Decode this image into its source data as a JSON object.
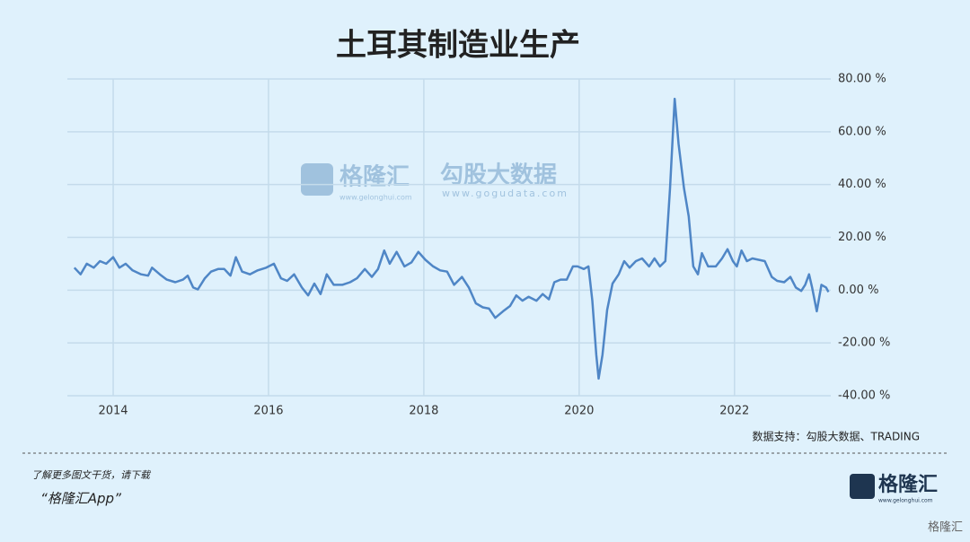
{
  "chart_data": {
    "type": "line",
    "title": "土耳其制造业生产",
    "source": "数据支持：勾股大数据、TRADING",
    "watermark": {
      "brand": "格隆汇",
      "brand_url": "www.gelonghui.com",
      "data_brand": "勾股大数据",
      "data_url": "www.gogudata.com"
    },
    "xlim": [
      2013.41,
      2023.24
    ],
    "xticks": [
      2014,
      2016,
      2018,
      2020,
      2022
    ],
    "ylim": [
      -40,
      80
    ],
    "yticks": [
      {
        "value": -40,
        "label": "-40.00 %"
      },
      {
        "value": -20,
        "label": "-20.00 %"
      },
      {
        "value": 0,
        "label": "0.00 %"
      },
      {
        "value": 20,
        "label": "20.00 %"
      },
      {
        "value": 40,
        "label": "40.00 %"
      },
      {
        "value": 60,
        "label": "60.00 %"
      },
      {
        "value": 80,
        "label": "80.00 %"
      }
    ],
    "grid": true,
    "series": [
      {
        "color": "#4f86c6",
        "x": [
          2013.5,
          2013.58,
          2013.66,
          2013.75,
          2013.83,
          2013.91,
          2014.0,
          2014.08,
          2014.16,
          2014.25,
          2014.36,
          2014.45,
          2014.5,
          2014.6,
          2014.69,
          2014.8,
          2014.9,
          2014.96,
          2015.03,
          2015.09,
          2015.18,
          2015.26,
          2015.35,
          2015.43,
          2015.51,
          2015.58,
          2015.66,
          2015.76,
          2015.86,
          2015.97,
          2016.07,
          2016.16,
          2016.24,
          2016.33,
          2016.43,
          2016.51,
          2016.59,
          2016.67,
          2016.75,
          2016.84,
          2016.95,
          2017.05,
          2017.14,
          2017.24,
          2017.33,
          2017.41,
          2017.49,
          2017.56,
          2017.65,
          2017.75,
          2017.84,
          2017.93,
          2018.02,
          2018.12,
          2018.21,
          2018.3,
          2018.39,
          2018.49,
          2018.58,
          2018.67,
          2018.76,
          2018.84,
          2018.92,
          2019.02,
          2019.11,
          2019.19,
          2019.27,
          2019.35,
          2019.45,
          2019.53,
          2019.61,
          2019.68,
          2019.76,
          2019.84,
          2019.92,
          2019.98,
          2020.06,
          2020.12,
          2020.17,
          2020.22,
          2020.25,
          2020.3,
          2020.36,
          2020.43,
          2020.51,
          2020.58,
          2020.65,
          2020.73,
          2020.81,
          2020.9,
          2020.97,
          2021.04,
          2021.11,
          2021.17,
          2021.23,
          2021.28,
          2021.35,
          2021.41,
          2021.47,
          2021.53,
          2021.58,
          2021.66,
          2021.76,
          2021.84,
          2021.91,
          2021.98,
          2022.03,
          2022.09,
          2022.16,
          2022.23,
          2022.31,
          2022.39,
          2022.48,
          2022.55,
          2022.64,
          2022.72,
          2022.79,
          2022.86,
          2022.91,
          2022.96,
          2023.0,
          2023.06,
          2023.12,
          2023.18,
          2023.21
        ],
        "values": [
          8.5,
          6,
          10,
          8.5,
          11,
          10,
          12.5,
          8.5,
          10,
          7.5,
          6,
          5.5,
          8.5,
          6,
          4,
          3,
          4,
          5.5,
          1,
          0.3,
          4.5,
          7,
          8,
          8,
          5.5,
          12.5,
          7,
          6,
          7.5,
          8.5,
          10,
          4.5,
          3.5,
          6,
          1,
          -2,
          2.5,
          -1.5,
          6,
          2,
          2,
          3,
          4.5,
          8,
          5,
          8,
          15,
          10,
          14.5,
          9,
          10.5,
          14.5,
          11.5,
          9,
          7.5,
          7,
          2,
          5,
          1,
          -5,
          -6.5,
          -7,
          -10.5,
          -8,
          -6,
          -2,
          -4,
          -2.5,
          -4,
          -1.5,
          -3.5,
          3,
          4,
          4,
          9,
          9,
          8,
          9,
          -4,
          -24.5,
          -33.5,
          -24.5,
          -7.5,
          2.5,
          6,
          11,
          8.5,
          11,
          12,
          9,
          12,
          9,
          11,
          38.5,
          72.5,
          55.5,
          38.5,
          28,
          9,
          6,
          14,
          9,
          9,
          12,
          15.5,
          11,
          9,
          15,
          11,
          12,
          11.5,
          11,
          5,
          3.5,
          3,
          5,
          1,
          -0.3,
          2,
          6,
          1,
          -8,
          2,
          1,
          -0.7
        ]
      }
    ]
  },
  "footer": {
    "note": "了解更多图文干货，请下载",
    "app": "“格隆汇App”",
    "logo": "格隆汇",
    "logo_url": "www.gelonghui.com",
    "corner": "格隆汇"
  }
}
